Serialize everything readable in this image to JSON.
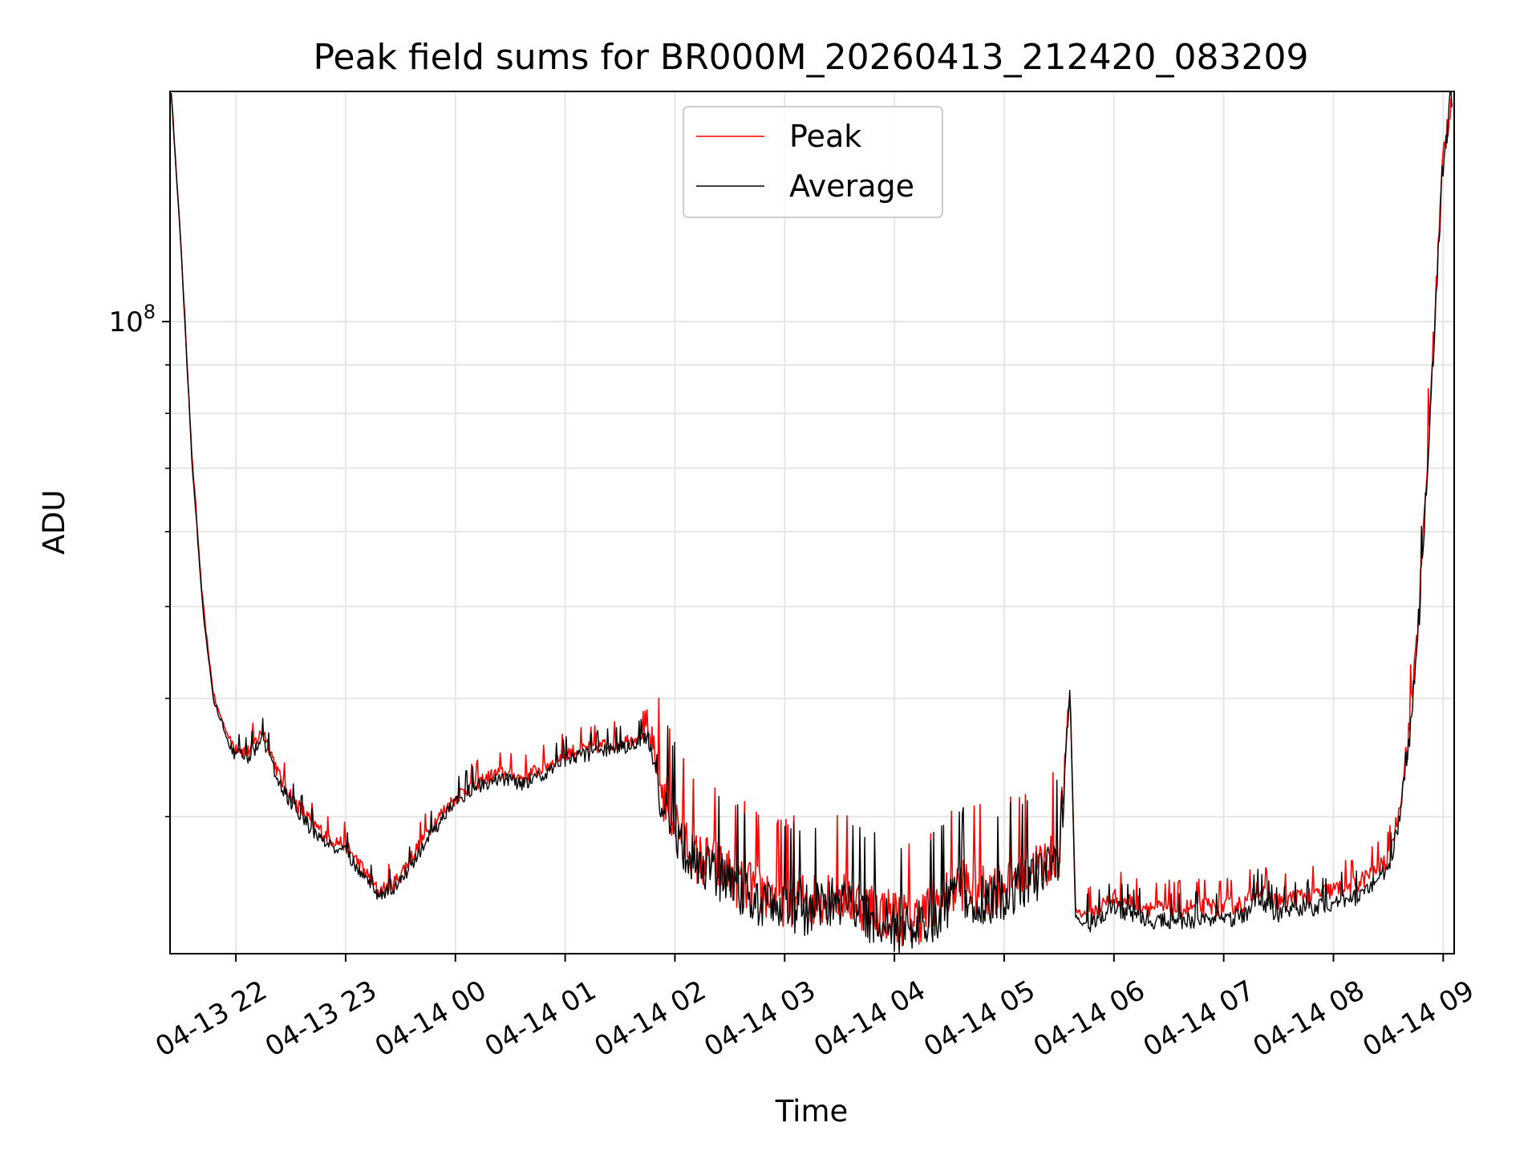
{
  "chart_data": {
    "type": "line",
    "title": "Peak field sums for BR000M_20260413_212420_083209",
    "xlabel": "Time",
    "ylabel": "ADU",
    "yscale": "log",
    "ylim": [
      21500000,
      175000000
    ],
    "xlim_hours_from_2026_04_13_21_00": [
      0.4,
      12.1
    ],
    "grid": true,
    "legend": "upper-center",
    "y_major_ticks": [
      {
        "value": 100000000,
        "base": "10",
        "exp": "8"
      }
    ],
    "y_minor_ticks": [
      30000000,
      40000000,
      50000000,
      60000000,
      70000000,
      80000000,
      90000000,
      200000000
    ],
    "x_ticks": [
      {
        "hours": 1,
        "label": "04-13 22"
      },
      {
        "hours": 2,
        "label": "04-13 23"
      },
      {
        "hours": 3,
        "label": "04-14 00"
      },
      {
        "hours": 4,
        "label": "04-14 01"
      },
      {
        "hours": 5,
        "label": "04-14 02"
      },
      {
        "hours": 6,
        "label": "04-14 03"
      },
      {
        "hours": 7,
        "label": "04-14 04"
      },
      {
        "hours": 8,
        "label": "04-14 05"
      },
      {
        "hours": 9,
        "label": "04-14 06"
      },
      {
        "hours": 10,
        "label": "04-14 07"
      },
      {
        "hours": 11,
        "label": "04-14 08"
      },
      {
        "hours": 12,
        "label": "04-14 09"
      }
    ],
    "x_unit": "hours since 04-13 21:00",
    "series": [
      {
        "name": "Peak",
        "color": "#ff0000",
        "x": [
          0.41,
          0.5,
          0.6,
          0.7,
          0.8,
          0.95,
          1.1,
          1.25,
          1.4,
          1.55,
          1.7,
          1.85,
          2.0,
          2.15,
          2.3,
          2.45,
          2.6,
          2.75,
          2.9,
          3.05,
          3.2,
          3.4,
          3.6,
          3.8,
          4.0,
          4.2,
          4.4,
          4.6,
          4.75,
          4.9,
          5.05,
          5.2,
          5.35,
          5.5,
          5.65,
          5.8,
          5.95,
          6.1,
          6.25,
          6.4,
          6.55,
          6.7,
          6.85,
          7.0,
          7.15,
          7.3,
          7.45,
          7.6,
          7.75,
          7.9,
          8.05,
          8.2,
          8.35,
          8.5,
          8.6,
          8.65,
          8.7,
          8.8,
          9.0,
          9.2,
          9.4,
          9.6,
          9.8,
          10.0,
          10.2,
          10.3,
          10.45,
          10.6,
          10.8,
          11.0,
          11.2,
          11.35,
          11.5,
          11.6,
          11.7,
          11.8,
          11.9,
          12.0,
          12.08
        ],
        "values": [
          175000000,
          120000000,
          72000000,
          50000000,
          40000000,
          36000000,
          35000000,
          37000000,
          33000000,
          31000000,
          29500000,
          28500000,
          28000000,
          26500000,
          25000000,
          25600000,
          27200000,
          29000000,
          30500000,
          31800000,
          32600000,
          33400000,
          33000000,
          33800000,
          35000000,
          35400000,
          35800000,
          36200000,
          37000000,
          31500000,
          29000000,
          27000000,
          26800000,
          26000000,
          25400000,
          25000000,
          24600000,
          24600000,
          24500000,
          25000000,
          24800000,
          24300000,
          23900000,
          23600000,
          23300000,
          23800000,
          24500000,
          25600000,
          25200000,
          25100000,
          25700000,
          26300000,
          26700000,
          27700000,
          41000000,
          24000000,
          23700000,
          23700000,
          24700000,
          24300000,
          24000000,
          24000000,
          24100000,
          24100000,
          24300000,
          25300000,
          24400000,
          24600000,
          24800000,
          25100000,
          25400000,
          26200000,
          27000000,
          30500000,
          38000000,
          54000000,
          90000000,
          150000000,
          175000000
        ]
      },
      {
        "name": "Average",
        "color": "#000000",
        "x": [
          0.41,
          0.5,
          0.6,
          0.7,
          0.8,
          0.95,
          1.1,
          1.25,
          1.4,
          1.55,
          1.7,
          1.85,
          2.0,
          2.15,
          2.3,
          2.45,
          2.6,
          2.75,
          2.9,
          3.05,
          3.2,
          3.4,
          3.6,
          3.8,
          4.0,
          4.2,
          4.4,
          4.6,
          4.75,
          4.9,
          5.05,
          5.2,
          5.35,
          5.5,
          5.65,
          5.8,
          5.95,
          6.1,
          6.25,
          6.4,
          6.55,
          6.7,
          6.85,
          7.0,
          7.15,
          7.3,
          7.45,
          7.6,
          7.75,
          7.9,
          8.05,
          8.2,
          8.35,
          8.5,
          8.6,
          8.65,
          8.7,
          8.8,
          9.0,
          9.2,
          9.4,
          9.6,
          9.8,
          10.0,
          10.2,
          10.3,
          10.45,
          10.6,
          10.8,
          11.0,
          11.2,
          11.35,
          11.5,
          11.6,
          11.7,
          11.8,
          11.9,
          12.0,
          12.08
        ],
        "values": [
          175000000,
          120000000,
          71000000,
          49500000,
          39500000,
          35400000,
          34400000,
          36300000,
          32400000,
          30500000,
          29000000,
          28000000,
          27600000,
          26200000,
          24800000,
          25200000,
          26700000,
          28500000,
          30100000,
          31500000,
          32300000,
          33000000,
          32500000,
          33300000,
          34500000,
          34900000,
          35300000,
          35700000,
          36500000,
          31000000,
          28500000,
          26500000,
          26300000,
          25500000,
          24900000,
          24500000,
          24100000,
          24100000,
          24000000,
          24500000,
          24300000,
          23800000,
          23400000,
          23100000,
          22800000,
          23300000,
          24000000,
          25100000,
          24700000,
          24600000,
          25200000,
          25800000,
          26200000,
          27200000,
          41000000,
          23500000,
          23200000,
          23200000,
          24100000,
          23600000,
          23300000,
          23300000,
          23400000,
          23400000,
          23600000,
          24800000,
          23700000,
          23900000,
          24100000,
          24400000,
          24700000,
          25500000,
          26400000,
          29800000,
          37300000,
          53000000,
          89000000,
          149000000,
          175000000
        ]
      }
    ]
  }
}
